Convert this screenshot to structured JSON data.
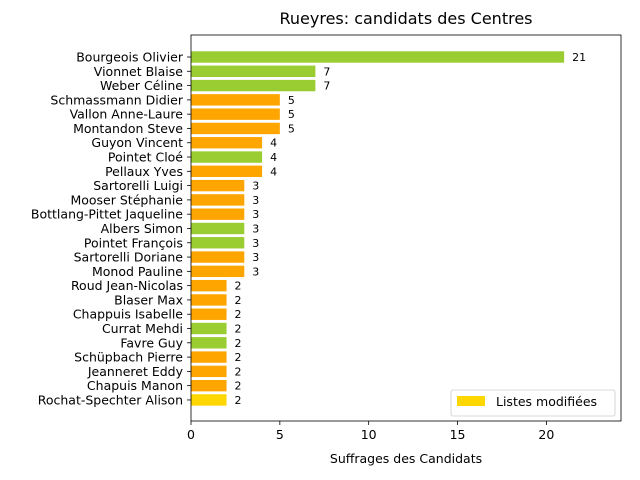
{
  "chart_data": {
    "type": "bar",
    "orientation": "horizontal",
    "title": "Rueyres: candidats des Centres",
    "xlabel": "Suffrages des Candidats",
    "ylabel": "",
    "xlim": [
      0,
      24.2
    ],
    "xticks": [
      0,
      5,
      10,
      15,
      20
    ],
    "grid": false,
    "legend": {
      "position": "lower-right",
      "entries": [
        {
          "label": "Listes modifiées",
          "color": "#FFD700"
        }
      ]
    },
    "colors": {
      "green": "#9ACD32",
      "orange": "#FFA500",
      "gold": "#FFD700"
    },
    "bars": [
      {
        "label": "Bourgeois Olivier",
        "value": 21,
        "color": "#9ACD32"
      },
      {
        "label": "Vionnet Blaise",
        "value": 7,
        "color": "#9ACD32"
      },
      {
        "label": "Weber Céline",
        "value": 7,
        "color": "#9ACD32"
      },
      {
        "label": "Schmassmann Didier",
        "value": 5,
        "color": "#FFA500"
      },
      {
        "label": "Vallon Anne-Laure",
        "value": 5,
        "color": "#FFA500"
      },
      {
        "label": "Montandon Steve",
        "value": 5,
        "color": "#FFA500"
      },
      {
        "label": "Guyon Vincent",
        "value": 4,
        "color": "#FFA500"
      },
      {
        "label": "Pointet Cloé",
        "value": 4,
        "color": "#9ACD32"
      },
      {
        "label": "Pellaux Yves",
        "value": 4,
        "color": "#FFA500"
      },
      {
        "label": "Sartorelli Luigi",
        "value": 3,
        "color": "#FFA500"
      },
      {
        "label": "Mooser Stéphanie",
        "value": 3,
        "color": "#FFA500"
      },
      {
        "label": "Bottlang-Pittet Jaqueline",
        "value": 3,
        "color": "#FFA500"
      },
      {
        "label": "Albers Simon",
        "value": 3,
        "color": "#9ACD32"
      },
      {
        "label": "Pointet François",
        "value": 3,
        "color": "#9ACD32"
      },
      {
        "label": "Sartorelli Doriane",
        "value": 3,
        "color": "#FFA500"
      },
      {
        "label": "Monod Pauline",
        "value": 3,
        "color": "#FFA500"
      },
      {
        "label": "Roud Jean-Nicolas",
        "value": 2,
        "color": "#FFA500"
      },
      {
        "label": "Blaser Max",
        "value": 2,
        "color": "#FFA500"
      },
      {
        "label": "Chappuis Isabelle",
        "value": 2,
        "color": "#FFA500"
      },
      {
        "label": "Currat Mehdi",
        "value": 2,
        "color": "#9ACD32"
      },
      {
        "label": "Favre Guy",
        "value": 2,
        "color": "#9ACD32"
      },
      {
        "label": "Schüpbach Pierre",
        "value": 2,
        "color": "#FFA500"
      },
      {
        "label": "Jeanneret Eddy",
        "value": 2,
        "color": "#FFA500"
      },
      {
        "label": "Chapuis Manon",
        "value": 2,
        "color": "#FFA500"
      },
      {
        "label": "Rochat-Spechter Alison",
        "value": 2,
        "color": "#FFD700"
      }
    ]
  }
}
